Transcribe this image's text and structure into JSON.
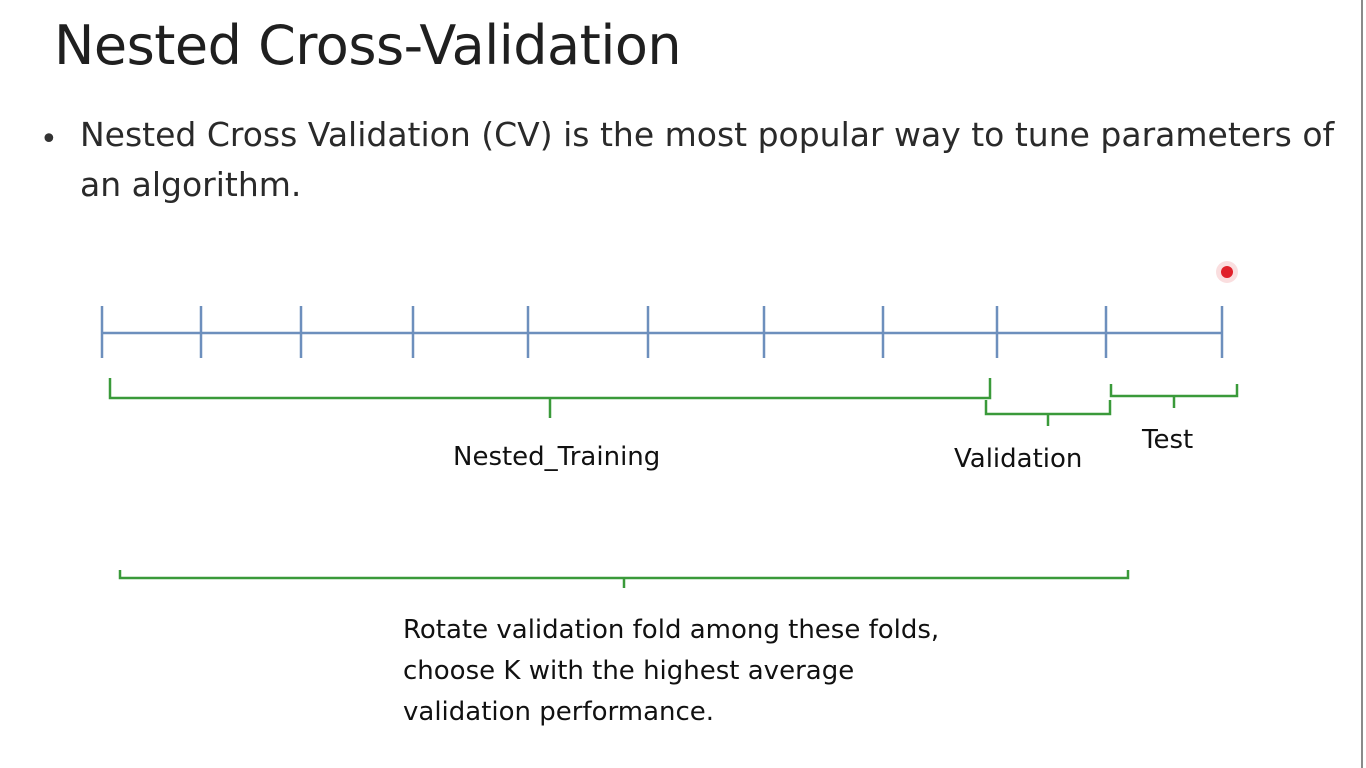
{
  "slide": {
    "title": "Nested Cross-Validation",
    "bullet": "Nested Cross Validation (CV) is the most popular way to tune parameters of an algorithm."
  },
  "diagram": {
    "fold_count": 10,
    "labels": {
      "nested_training": "Nested_Training",
      "validation": "Validation",
      "test": "Test"
    },
    "note_lines": [
      "Rotate validation fold among these folds,",
      "choose K with the highest average",
      "validation performance."
    ],
    "colors": {
      "axis": "#6d8fbd",
      "brace": "#3a9a3a",
      "pointer": "#e0202a"
    }
  }
}
